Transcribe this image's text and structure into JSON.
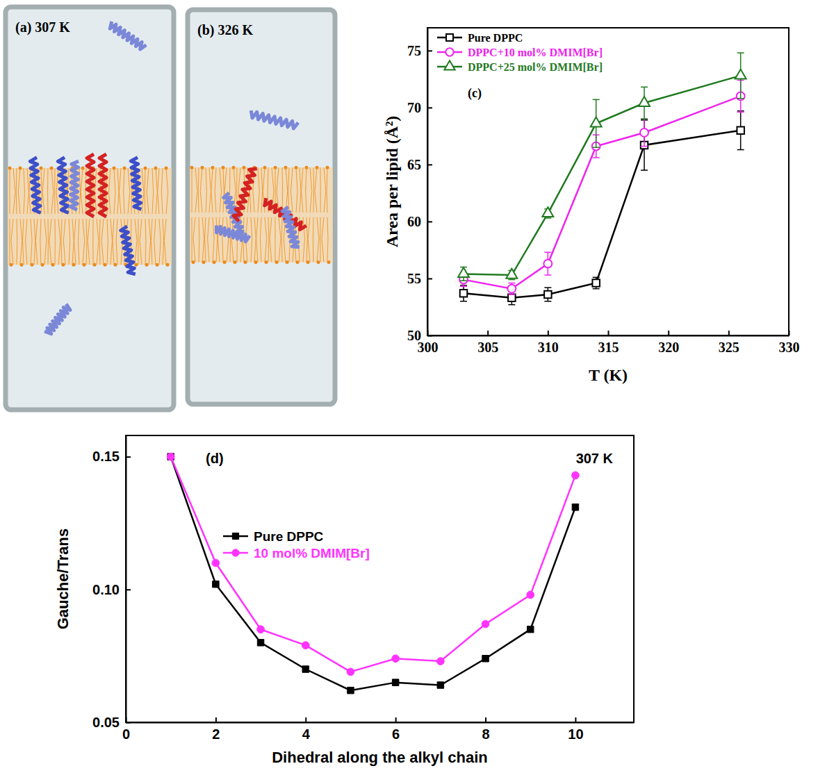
{
  "chart_data": [
    {
      "type": "snapshot",
      "title": "(a) 307 K"
    },
    {
      "type": "snapshot",
      "title": "(b) 326 K"
    },
    {
      "type": "line",
      "annotation": "(c)",
      "xlabel": "T (K)",
      "ylabel": "Area per lipid (Å²)",
      "x": [
        303,
        307,
        310,
        314,
        318,
        326
      ],
      "series": [
        {
          "name": "Pure DPPC",
          "color": "#000000",
          "marker": "open-square",
          "values": [
            53.7,
            53.3,
            53.6,
            54.6,
            66.7,
            68.0
          ],
          "errors": [
            0.7,
            0.6,
            0.6,
            0.5,
            2.2,
            1.7
          ]
        },
        {
          "name": "DPPC+10 mol% DMIM[Br]",
          "color": "#ee22ee",
          "marker": "open-circle",
          "values": [
            54.9,
            54.1,
            56.3,
            66.6,
            67.8,
            71.0
          ],
          "errors": [
            0.6,
            0.5,
            1.0,
            1.0,
            1.2,
            1.4
          ]
        },
        {
          "name": "DPPC+25 mol% DMIM[Br]",
          "color": "#1f7a1f",
          "marker": "open-triangle",
          "values": [
            55.4,
            55.3,
            60.7,
            68.6,
            70.4,
            72.8
          ],
          "errors": [
            0.6,
            0.4,
            0.4,
            2.1,
            1.4,
            2.0
          ]
        }
      ],
      "xlim": [
        300,
        330
      ],
      "xticks": [
        300,
        305,
        310,
        315,
        320,
        325,
        330
      ],
      "ylim": [
        50,
        77
      ],
      "yticks": [
        50,
        55,
        60,
        65,
        70,
        75
      ],
      "legend": "upper left"
    },
    {
      "type": "line",
      "annotations": [
        "(d)",
        "307 K"
      ],
      "xlabel": "Dihedral along the alkyl chain",
      "ylabel": "Gauche/Trans",
      "x": [
        1,
        2,
        3,
        4,
        5,
        6,
        7,
        8,
        9,
        10
      ],
      "series": [
        {
          "name": "Pure DPPC",
          "color": "#000000",
          "marker": "square",
          "values": [
            0.15,
            0.102,
            0.08,
            0.07,
            0.062,
            0.065,
            0.064,
            0.074,
            0.085,
            0.131
          ]
        },
        {
          "name": "10 mol% DMIM[Br]",
          "color": "#ff33ff",
          "marker": "circle",
          "values": [
            0.15,
            0.11,
            0.085,
            0.079,
            0.069,
            0.074,
            0.073,
            0.087,
            0.098,
            0.143
          ]
        }
      ],
      "xlim": [
        0,
        11.3
      ],
      "xticks": [
        0,
        2,
        4,
        6,
        8,
        10
      ],
      "ylim": [
        0.05,
        0.158
      ],
      "yticks": [
        0.05,
        {
          "value": 0.1,
          "label": "0.10"
        },
        0.15
      ],
      "legend": "center left"
    }
  ]
}
